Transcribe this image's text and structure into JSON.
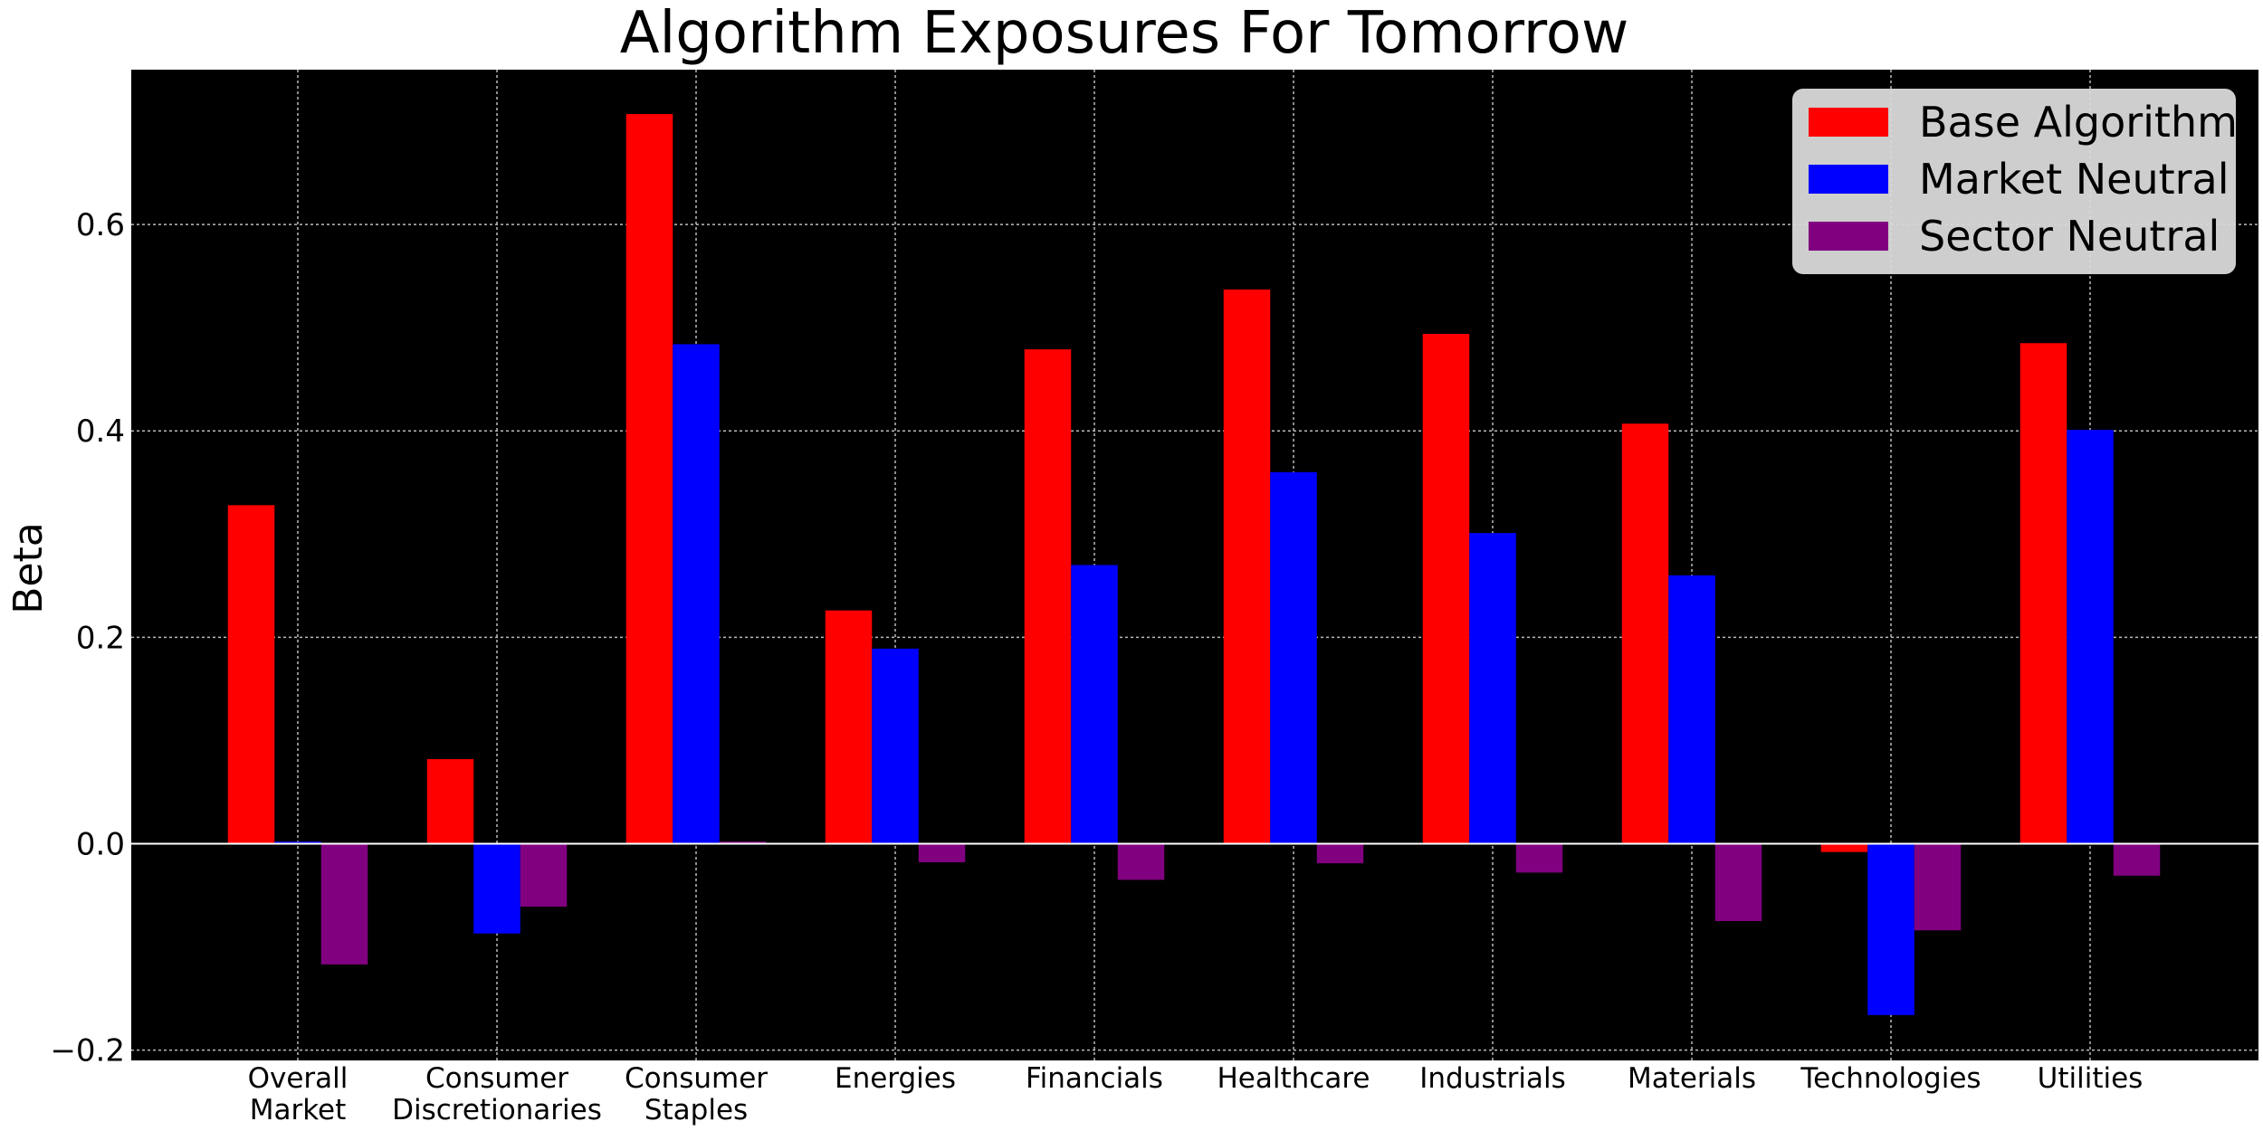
{
  "chart_data": {
    "type": "bar",
    "title": "Algorithm Exposures For Tomorrow",
    "xlabel": "",
    "ylabel": "Beta",
    "ylim": [
      -0.21,
      0.75
    ],
    "yticks": [
      -0.2,
      0.0,
      0.2,
      0.4,
      0.6
    ],
    "ytick_labels": [
      "−0.2",
      "0.0",
      "0.2",
      "0.4",
      "0.6"
    ],
    "grid": true,
    "legend_position": "top-right",
    "background": "#000000",
    "categories": [
      [
        "Overall",
        "Market"
      ],
      [
        "Consumer",
        "Discretionaries"
      ],
      [
        "Consumer",
        "Staples"
      ],
      [
        "Energies"
      ],
      [
        "Financials"
      ],
      [
        "Healthcare"
      ],
      [
        "Industrials"
      ],
      [
        "Materials"
      ],
      [
        "Technologies"
      ],
      [
        "Utilities"
      ]
    ],
    "series": [
      {
        "name": "Base Algorithm",
        "color": "#ff0000",
        "values": [
          0.328,
          0.082,
          0.707,
          0.226,
          0.479,
          0.537,
          0.494,
          0.407,
          -0.008,
          0.485
        ]
      },
      {
        "name": "Market Neutral",
        "color": "#0000ff",
        "values": [
          0.002,
          -0.087,
          0.484,
          0.189,
          0.27,
          0.36,
          0.301,
          0.26,
          -0.166,
          0.401
        ]
      },
      {
        "name": "Sector Neutral",
        "color": "#800080",
        "values": [
          -0.117,
          -0.061,
          0.002,
          -0.018,
          -0.035,
          -0.019,
          -0.028,
          -0.075,
          -0.084,
          -0.031
        ]
      }
    ]
  }
}
